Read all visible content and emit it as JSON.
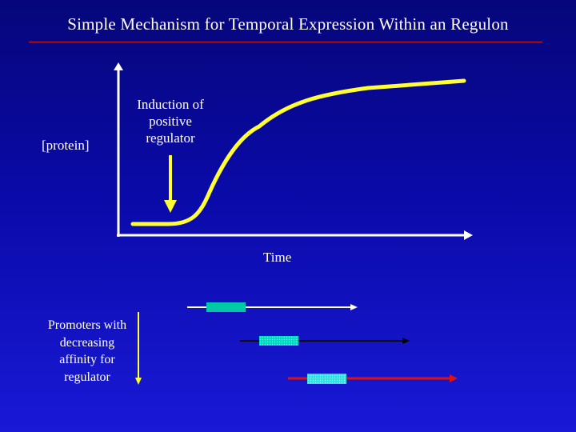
{
  "slide": {
    "title": "Simple Mechanism for Temporal Expression Within an Regulon"
  },
  "graph": {
    "y_axis_label": "[protein]",
    "x_axis_label": "Time",
    "annotation": "Induction of positive regulator",
    "annotation_lines": [
      "Induction of",
      "positive",
      "regulator"
    ]
  },
  "promoters": {
    "label": "Promoters with decreasing affinity for regulator",
    "label_lines": [
      "Promoters with",
      "decreasing",
      "affinity for",
      "regulator"
    ],
    "items": [
      {
        "line_color": "#ffffff",
        "box_color": "#00c8a8"
      },
      {
        "line_color": "#000000",
        "box_color": "#00e0c8"
      },
      {
        "line_color": "#e01010",
        "box_color": "#40e8e0"
      }
    ]
  },
  "colors": {
    "curve": "#ffff33",
    "axis": "#ffffff",
    "title_rule": "#c81e1e",
    "arrow": "#ffff33"
  }
}
